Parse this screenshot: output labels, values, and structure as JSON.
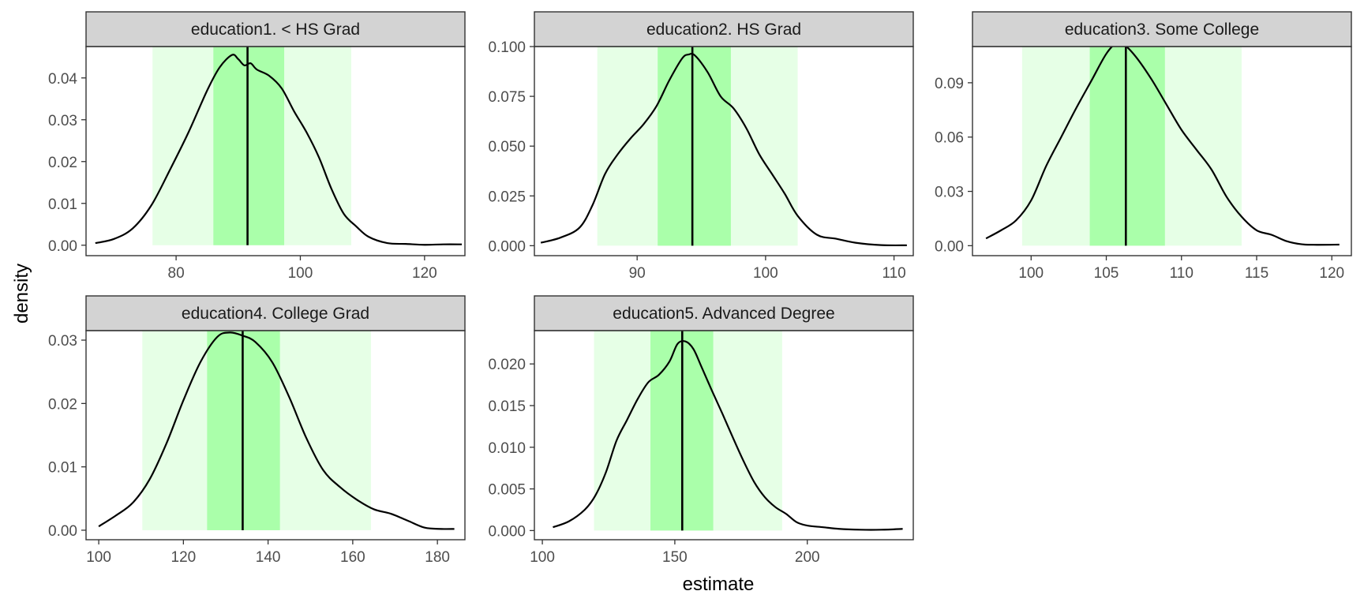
{
  "chart_data": {
    "type": "area",
    "xlabel": "estimate",
    "ylabel": "density",
    "colors": {
      "outer_band": "#e6ffe6",
      "inner_band": "#aaffaa",
      "curve": "#000000",
      "strip_fill": "#d3d3d3",
      "panel_border": "#333333"
    },
    "panels": [
      {
        "title": "education1. < HS Grad",
        "xlim": [
          65.5,
          126.5
        ],
        "ylim": [
          -0.0025,
          0.0475
        ],
        "xticks": [
          80,
          100,
          120
        ],
        "yticks": [
          0.0,
          0.01,
          0.02,
          0.03,
          0.04
        ],
        "ytick_labels": [
          "0.00",
          "0.01",
          "0.02",
          "0.03",
          "0.04"
        ],
        "outer_interval": [
          76.2,
          108.2
        ],
        "inner_interval": [
          86.0,
          97.4
        ],
        "estimate_line": 91.5,
        "density": {
          "x": [
            67,
            70,
            73,
            76,
            79,
            82,
            85,
            87,
            89,
            90,
            91,
            92,
            93,
            95,
            97,
            99,
            101,
            103,
            105,
            107,
            109,
            111,
            114,
            117,
            120,
            123,
            126
          ],
          "y": [
            0.0005,
            0.0015,
            0.004,
            0.0095,
            0.018,
            0.027,
            0.037,
            0.0425,
            0.0455,
            0.0445,
            0.043,
            0.0435,
            0.042,
            0.0405,
            0.0375,
            0.032,
            0.027,
            0.021,
            0.0135,
            0.0075,
            0.0045,
            0.002,
            0.0005,
            0.0003,
            0.0001,
            0.0002,
            0.0002
          ]
        }
      },
      {
        "title": "education2. HS Grad",
        "xlim": [
          82.0,
          111.5
        ],
        "ylim": [
          -0.005,
          0.1
        ],
        "xticks": [
          90,
          100,
          110
        ],
        "yticks": [
          0.0,
          0.025,
          0.05,
          0.075,
          0.1
        ],
        "ytick_labels": [
          "0.000",
          "0.025",
          "0.050",
          "0.075",
          "0.100"
        ],
        "outer_interval": [
          86.9,
          102.5
        ],
        "inner_interval": [
          91.6,
          97.3
        ],
        "estimate_line": 94.3,
        "density": {
          "x": [
            82.5,
            84,
            85.5,
            86.5,
            87.5,
            88.5,
            89.5,
            90.5,
            91.5,
            92.5,
            93.5,
            94,
            94.5,
            95.5,
            96.5,
            97.5,
            98.5,
            99.5,
            100.5,
            101.5,
            102.5,
            104,
            105.5,
            107,
            109,
            111
          ],
          "y": [
            0.0015,
            0.004,
            0.009,
            0.02,
            0.036,
            0.046,
            0.054,
            0.061,
            0.07,
            0.083,
            0.094,
            0.096,
            0.0955,
            0.087,
            0.075,
            0.069,
            0.059,
            0.046,
            0.036,
            0.026,
            0.015,
            0.0055,
            0.0035,
            0.0015,
            0.0003,
            0.0002
          ]
        }
      },
      {
        "title": "education3. Some College",
        "xlim": [
          96.1,
          121.3
        ],
        "ylim": [
          -0.0055,
          0.11
        ],
        "xticks": [
          100,
          105,
          110,
          115,
          120
        ],
        "yticks": [
          0.0,
          0.03,
          0.06,
          0.09
        ],
        "ytick_labels": [
          "0.00",
          "0.03",
          "0.06",
          "0.09"
        ],
        "outer_interval": [
          99.4,
          114.0
        ],
        "inner_interval": [
          103.9,
          108.9
        ],
        "estimate_line": 106.3,
        "density": {
          "x": [
            97,
            98,
            99,
            100,
            101,
            102,
            103,
            104,
            105,
            105.7,
            106.2,
            107,
            108,
            109,
            110,
            111,
            112,
            113,
            114,
            115,
            116,
            117,
            118,
            119,
            120.5
          ],
          "y": [
            0.004,
            0.0085,
            0.014,
            0.025,
            0.044,
            0.06,
            0.076,
            0.091,
            0.106,
            0.112,
            0.111,
            0.104,
            0.092,
            0.078,
            0.064,
            0.053,
            0.042,
            0.027,
            0.016,
            0.0085,
            0.006,
            0.0025,
            0.0008,
            0.0005,
            0.0006
          ]
        }
      },
      {
        "title": "education4. College Grad",
        "xlim": [
          97.0,
          186.5
        ],
        "ylim": [
          -0.0015,
          0.0315
        ],
        "xticks": [
          100,
          120,
          140,
          160,
          180
        ],
        "yticks": [
          0.0,
          0.01,
          0.02,
          0.03
        ],
        "ytick_labels": [
          "0.00",
          "0.01",
          "0.02",
          "0.03"
        ],
        "outer_interval": [
          110.3,
          164.3
        ],
        "inner_interval": [
          125.6,
          142.8
        ],
        "estimate_line": 134.0,
        "density": {
          "x": [
            100,
            104,
            108,
            112,
            116,
            120,
            124,
            128,
            131,
            134,
            137,
            141,
            145,
            149,
            153,
            157,
            161,
            165,
            169,
            173,
            177,
            181,
            184
          ],
          "y": [
            0.0006,
            0.0023,
            0.0043,
            0.008,
            0.0137,
            0.0205,
            0.0265,
            0.0305,
            0.0312,
            0.0307,
            0.0297,
            0.0265,
            0.021,
            0.0146,
            0.0095,
            0.0068,
            0.0048,
            0.0033,
            0.0026,
            0.0015,
            0.0004,
            0.0002,
            0.0002
          ]
        }
      },
      {
        "title": "education5. Advanced Degree",
        "xlim": [
          97.0,
          240.0
        ],
        "ylim": [
          -0.0011,
          0.024
        ],
        "xticks": [
          100,
          150,
          200
        ],
        "yticks": [
          0.0,
          0.005,
          0.01,
          0.015,
          0.02
        ],
        "ytick_labels": [
          "0.000",
          "0.005",
          "0.010",
          "0.015",
          "0.020"
        ],
        "outer_interval": [
          119.5,
          190.5
        ],
        "inner_interval": [
          140.8,
          164.5
        ],
        "estimate_line": 152.8,
        "density": {
          "x": [
            104,
            110,
            116,
            120,
            124,
            128,
            132,
            136,
            140,
            144,
            148,
            151,
            154,
            157,
            160,
            164,
            168,
            172,
            176,
            180,
            184,
            188,
            192,
            196,
            200,
            206,
            212,
            220,
            228,
            236
          ],
          "y": [
            0.0004,
            0.0011,
            0.0025,
            0.0042,
            0.007,
            0.0108,
            0.0133,
            0.0158,
            0.0178,
            0.0187,
            0.0203,
            0.0224,
            0.0227,
            0.0218,
            0.0197,
            0.0168,
            0.014,
            0.0111,
            0.0083,
            0.0058,
            0.004,
            0.0028,
            0.002,
            0.001,
            0.0006,
            0.0004,
            0.0002,
            0.0001,
            0.0001,
            0.0002
          ]
        }
      }
    ]
  }
}
